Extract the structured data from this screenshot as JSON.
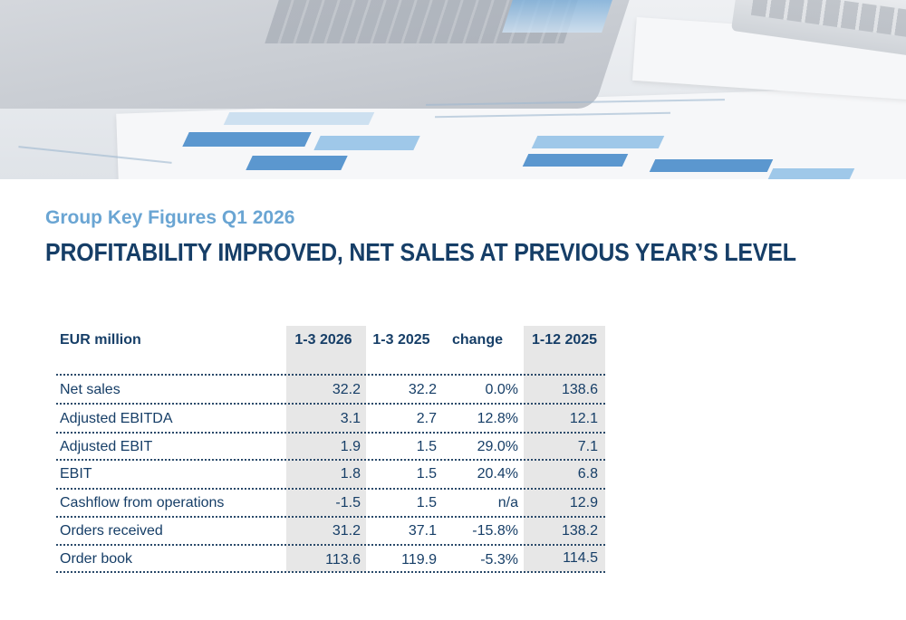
{
  "header": {
    "subtitle": "Group Key Figures Q1 2026",
    "title": "PROFITABILITY IMPROVED, NET SALES AT PREVIOUS YEAR’S LEVEL"
  },
  "table": {
    "columns": [
      "EUR million",
      "1-3 2026",
      "1-3 2025",
      "change",
      "1-12 2025"
    ],
    "rows": [
      {
        "label": "Net sales",
        "q1_2026": "32.2",
        "q1_2025": "32.2",
        "change": "0.0%",
        "fy_2025": "138.6"
      },
      {
        "label": "Adjusted EBITDA",
        "q1_2026": "3.1",
        "q1_2025": "2.7",
        "change": "12.8%",
        "fy_2025": "12.1"
      },
      {
        "label": "Adjusted EBIT",
        "q1_2026": "1.9",
        "q1_2025": "1.5",
        "change": "29.0%",
        "fy_2025": "7.1"
      },
      {
        "label": "EBIT",
        "q1_2026": "1.8",
        "q1_2025": "1.5",
        "change": "20.4%",
        "fy_2025": "6.8"
      },
      {
        "label": "Cashflow from operations",
        "q1_2026": "-1.5",
        "q1_2025": "1.5",
        "change": "n/a",
        "fy_2025": "12.9"
      },
      {
        "label": "Orders received",
        "q1_2026": "31.2",
        "q1_2025": "37.1",
        "change": "-15.8%",
        "fy_2025": "138.2"
      },
      {
        "label": "Order book",
        "q1_2026": "113.6",
        "q1_2025": "119.9",
        "change": "-5.3%",
        "fy_2025": "114.5"
      }
    ]
  },
  "colors": {
    "subtitle": "#6aa5d3",
    "title": "#163e67",
    "table_text": "#163e67",
    "shaded_column": "#e7e7e7"
  }
}
